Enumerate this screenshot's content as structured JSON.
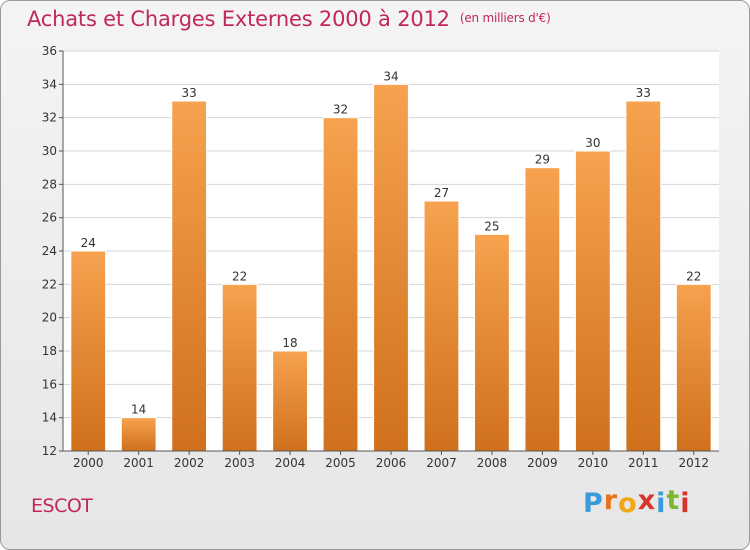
{
  "chart_data": {
    "type": "bar",
    "title": "Achats et Charges Externes 2000 à 2012",
    "subtitle": "(en milliers d'€)",
    "categories": [
      "2000",
      "2001",
      "2002",
      "2003",
      "2004",
      "2005",
      "2006",
      "2007",
      "2008",
      "2009",
      "2010",
      "2011",
      "2012"
    ],
    "values": [
      24,
      14,
      33,
      22,
      18,
      32,
      34,
      27,
      25,
      29,
      30,
      33,
      22
    ],
    "xlabel": "",
    "ylabel": "",
    "ylim": [
      12,
      36
    ],
    "yticks": [
      12,
      14,
      16,
      18,
      20,
      22,
      24,
      26,
      28,
      30,
      32,
      34,
      36
    ],
    "grid": true,
    "bar_color": "#f0923a",
    "bar_color_dark": "#d0701c"
  },
  "footer": {
    "commune": "ESCOT",
    "logo_letters": [
      "P",
      "r",
      "o",
      "x",
      "i",
      "t",
      "i"
    ],
    "logo_colors": [
      "#3b9ad9",
      "#e8731a",
      "#f0a818",
      "#d9342b",
      "#3b9ad9",
      "#7cb832",
      "#d9342b"
    ]
  }
}
